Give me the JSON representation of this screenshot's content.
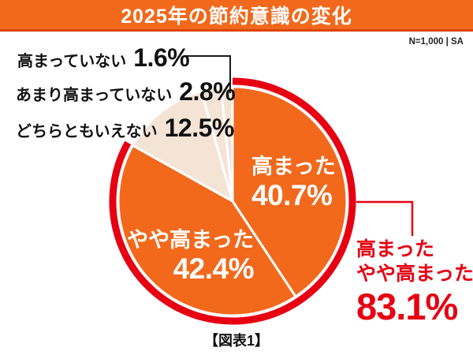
{
  "header": {
    "title": "2025年の節約意識の変化",
    "sample_note": "N=1,000 | SA"
  },
  "caption": "【図表1】",
  "colors": {
    "banner_orange": "#f2691c",
    "banner_edge_red": "#de4300",
    "slice_orange": "#f2691c",
    "slice_pale": "#f4e4d5",
    "accent_red": "#e60012",
    "text_black": "#111111",
    "inner_label_white": "#ffffff"
  },
  "chart_data": {
    "type": "pie",
    "title": "2025年の節約意識の変化",
    "direction": "clockwise",
    "start_angle_deg": 0,
    "total": 100,
    "legend_position": "none",
    "slices": [
      {
        "id": "takamatta",
        "label": "高まった",
        "value": 40.7,
        "display": "40.7%",
        "color": "#f2691c",
        "label_placement": "inside"
      },
      {
        "id": "yaya-takamatta",
        "label": "やや高まった",
        "value": 42.4,
        "display": "42.4%",
        "color": "#f2691c",
        "label_placement": "inside"
      },
      {
        "id": "dochira-tomo-ienai",
        "label": "どちらともいえない",
        "value": 12.5,
        "display": "12.5%",
        "color": "#f4e4d5",
        "label_placement": "outside"
      },
      {
        "id": "amari-takamatte-inai",
        "label": "あまり高まっていない",
        "value": 2.8,
        "display": "2.8%",
        "color": "#f4e4d5",
        "label_placement": "outside"
      },
      {
        "id": "takamatte-inai",
        "label": "高まっていない",
        "value": 1.6,
        "display": "1.6%",
        "color": "#f4e4d5",
        "label_placement": "outside"
      }
    ],
    "combined_annotation": {
      "labels": [
        "高まった",
        "やや高まった"
      ],
      "value": 83.1,
      "display": "83.1%",
      "color": "#e60012"
    },
    "highlight_ring": {
      "color": "#e60012",
      "spans_percent": 83.1
    }
  }
}
